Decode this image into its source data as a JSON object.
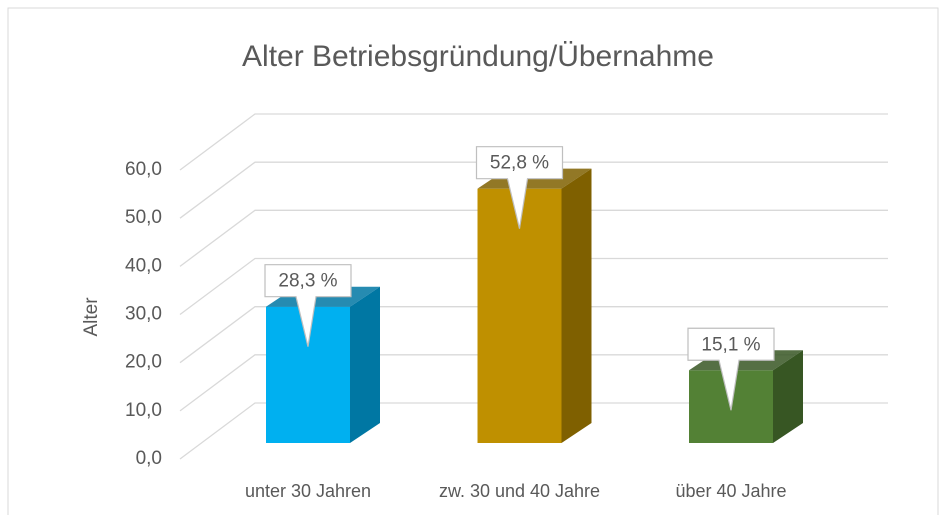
{
  "chart_data": {
    "type": "bar",
    "title": "Alter Betriebsgründung/Übernahme",
    "y_label": "Alter",
    "categories": [
      "unter 30 Jahren",
      "zw. 30 und 40 Jahre",
      "über 40 Jahre"
    ],
    "values": [
      28.3,
      52.8,
      15.1
    ],
    "value_labels": [
      "28,3 %",
      "52,8 %",
      "15,1 %"
    ],
    "colors": [
      "#00b0f0",
      "#bf9000",
      "#538135"
    ],
    "side_colors": [
      "#0077a3",
      "#7f6000",
      "#375623"
    ],
    "ylim": [
      0,
      60
    ],
    "yticks": [
      {
        "value": 0,
        "label": "0,0"
      },
      {
        "value": 10,
        "label": "10,0"
      },
      {
        "value": 20,
        "label": "20,0"
      },
      {
        "value": 30,
        "label": "30,0"
      },
      {
        "value": 40,
        "label": "40,0"
      },
      {
        "value": 50,
        "label": "50,0"
      },
      {
        "value": 60,
        "label": "60,0"
      }
    ],
    "grid": true
  }
}
